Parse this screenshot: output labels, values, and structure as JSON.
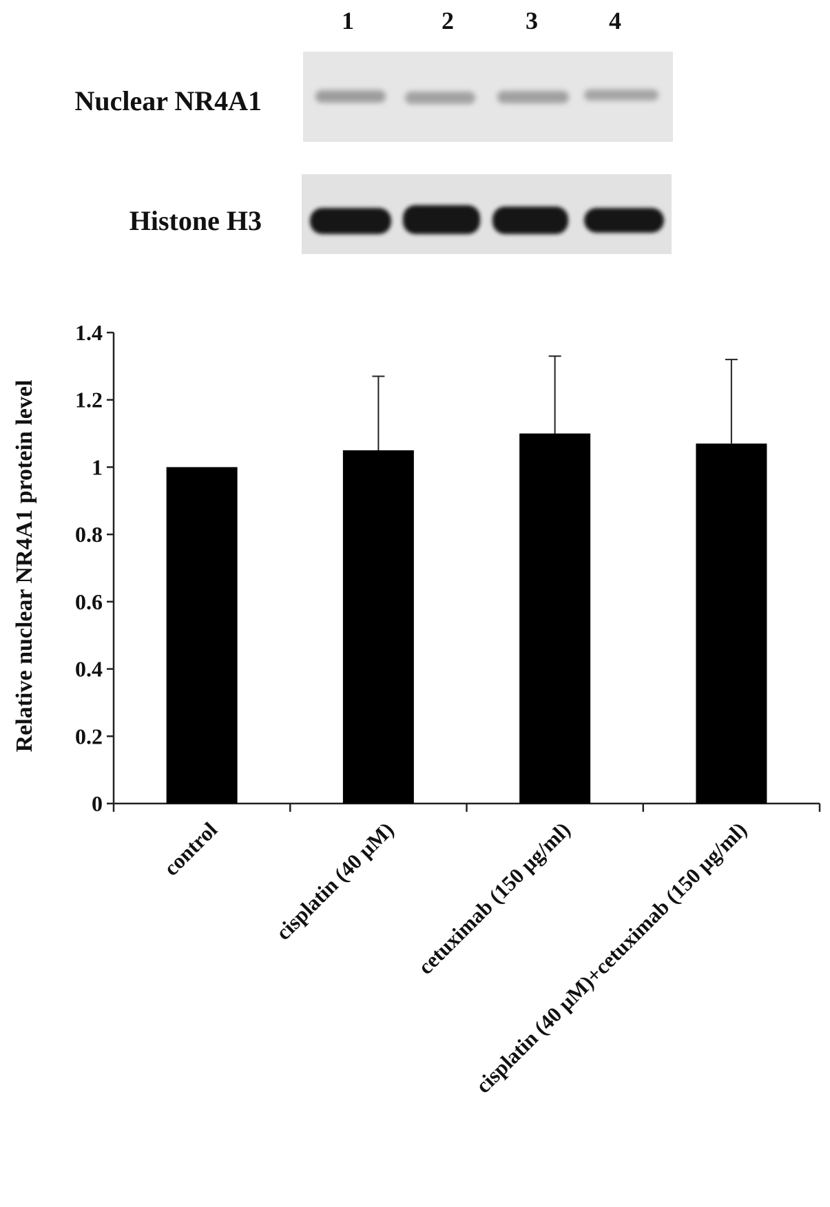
{
  "blot": {
    "lane_labels": [
      "1",
      "2",
      "3",
      "4"
    ],
    "rows": [
      {
        "label": "Nuclear NR4A1",
        "band_intensity": "weak"
      },
      {
        "label": "Histone H3",
        "band_intensity": "strong"
      }
    ]
  },
  "chart_data": {
    "type": "bar",
    "categories": [
      "control",
      "cisplatin (40  µM)",
      "cetuximab (150  µg/ml)",
      "cisplatin (40  µM)+cetuximab (150  µg/ml)"
    ],
    "values": [
      1.0,
      1.05,
      1.1,
      1.07
    ],
    "error_upper": [
      0,
      1.27,
      1.33,
      1.32
    ],
    "title": "",
    "xlabel": "",
    "ylabel": "Relative nuclear NR4A1 protein level",
    "ylim": [
      0,
      1.4
    ],
    "yticks": [
      "0",
      "0.2",
      "0.4",
      "0.6",
      "0.8",
      "1",
      "1.2",
      "1.4"
    ],
    "grid": false,
    "bar_color": "#000000"
  }
}
